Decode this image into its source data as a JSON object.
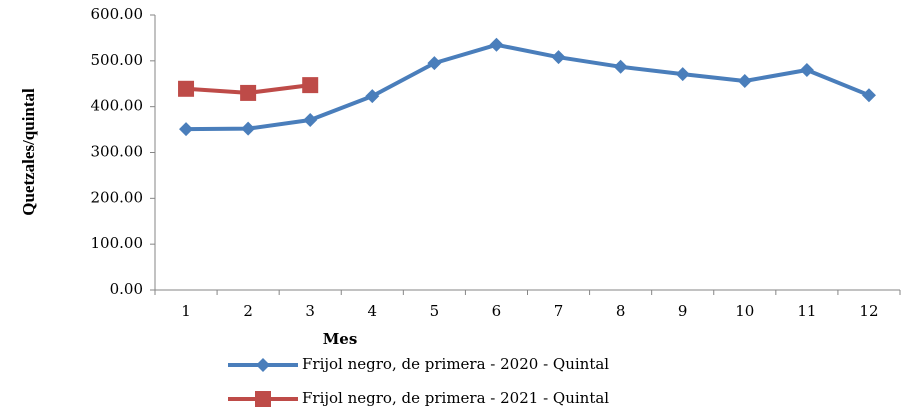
{
  "chart_data": {
    "type": "line",
    "x_label": "Mes",
    "y_label": "Quetzales/quintal",
    "categories": [
      "1",
      "2",
      "3",
      "4",
      "5",
      "6",
      "7",
      "8",
      "9",
      "10",
      "11",
      "12"
    ],
    "series": [
      {
        "name": "Frijol negro, de primera - 2020 - Quintal",
        "color": "#4a7ebb",
        "marker": "diamond",
        "values": [
          351,
          352,
          371,
          423,
          495,
          535,
          508,
          487,
          471,
          456,
          480,
          425
        ]
      },
      {
        "name": "Frijol negro, de primera - 2021 - Quintal",
        "color": "#be4b48",
        "marker": "square",
        "values": [
          439,
          430,
          447,
          null,
          null,
          null,
          null,
          null,
          null,
          null,
          null,
          null
        ]
      }
    ],
    "ylim": [
      0,
      600
    ],
    "yticks": [
      {
        "value": 0,
        "label": "0.00"
      },
      {
        "value": 100,
        "label": "100.00"
      },
      {
        "value": 200,
        "label": "200.00"
      },
      {
        "value": 300,
        "label": "300.00"
      },
      {
        "value": 400,
        "label": "400.00"
      },
      {
        "value": 500,
        "label": "500.00"
      },
      {
        "value": 600,
        "label": "600.00"
      }
    ],
    "grid": false,
    "legend": "bottom"
  }
}
